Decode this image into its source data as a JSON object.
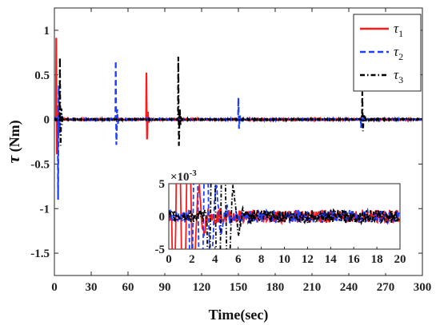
{
  "chart_data": [
    {
      "type": "line",
      "xlabel": "Time(sec)",
      "ylabel_symbol": "τ",
      "ylabel_unit": "(Nm)",
      "xlim": [
        0,
        300
      ],
      "ylim": [
        -1.75,
        1.25
      ],
      "xticks": [
        0,
        30,
        60,
        90,
        120,
        150,
        180,
        210,
        240,
        270,
        300
      ],
      "yticks": [
        -1.5,
        -1,
        -0.5,
        0,
        0.5,
        1
      ],
      "ytick_labels": [
        "-1.5",
        "-1",
        "-0.5",
        "0",
        "0.5",
        "1"
      ],
      "grid": false,
      "legend": "top-right",
      "series": [
        {
          "key": "tau1",
          "name": "τ",
          "sub": "1",
          "color": "#ff1a1a",
          "dash": "solid",
          "events": [
            {
              "t": 1.5,
              "amp": 0.92,
              "sign": 1
            },
            {
              "t": 75,
              "amp": 0.52,
              "sign": 1
            }
          ]
        },
        {
          "key": "tau2",
          "name": "τ",
          "sub": "2",
          "color": "#1f3fff",
          "dash": "dashed",
          "events": [
            {
              "t": 3,
              "amp": 0.9,
              "sign": -1
            },
            {
              "t": 50,
              "amp": 0.66,
              "sign": 1
            },
            {
              "t": 150,
              "amp": 0.24,
              "sign": 1
            },
            {
              "t": 250,
              "amp": 0.1,
              "sign": -1
            }
          ]
        },
        {
          "key": "tau3",
          "name": "τ",
          "sub": "3",
          "color": "#000000",
          "dash": "dashdot",
          "events": [
            {
              "t": 4.5,
              "amp": 0.7,
              "sign": 1
            },
            {
              "t": 101,
              "amp": 0.71,
              "sign": 1
            },
            {
              "t": 251,
              "amp": 0.31,
              "sign": 1
            }
          ]
        }
      ]
    },
    {
      "type": "line",
      "role": "inset",
      "xlim": [
        0,
        20
      ],
      "ylim": [
        -5,
        5
      ],
      "y_exponent": "×10",
      "y_exponent_power": "-3",
      "xticks": [
        0,
        2,
        4,
        6,
        8,
        10,
        12,
        14,
        16,
        18,
        20
      ],
      "yticks": [
        -5,
        0,
        5
      ],
      "series_keys": [
        "tau1",
        "tau2",
        "tau3"
      ],
      "noise_amplitude": 1.0
    }
  ]
}
